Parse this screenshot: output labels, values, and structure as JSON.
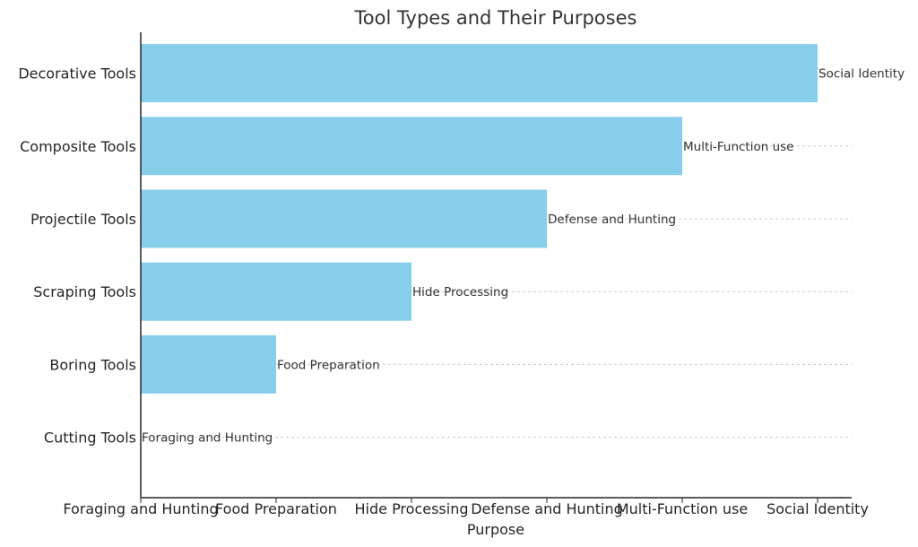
{
  "chart_data": {
    "type": "bar",
    "orientation": "horizontal",
    "title": "Tool Types and Their Purposes",
    "xlabel": "Purpose",
    "ylabel": "",
    "categories": [
      "Cutting Tools",
      "Boring Tools",
      "Scraping Tools",
      "Projectile Tools",
      "Composite Tools",
      "Decorative Tools"
    ],
    "values": [
      0,
      1,
      2,
      3,
      4,
      5
    ],
    "bar_labels": [
      "Foraging and Hunting",
      "Food Preparation",
      "Hide Processing",
      "Defense and Hunting",
      "Multi-Function use",
      "Social Identity"
    ],
    "x_ticks": [
      "Foraging and Hunting",
      "Food Preparation",
      "Hide Processing",
      "Defense and Hunting",
      "Multi-Function use",
      "Social Identity"
    ],
    "xlim": [
      0,
      5.25
    ],
    "grid": true,
    "colors": {
      "bar": "#87CEEB"
    }
  }
}
